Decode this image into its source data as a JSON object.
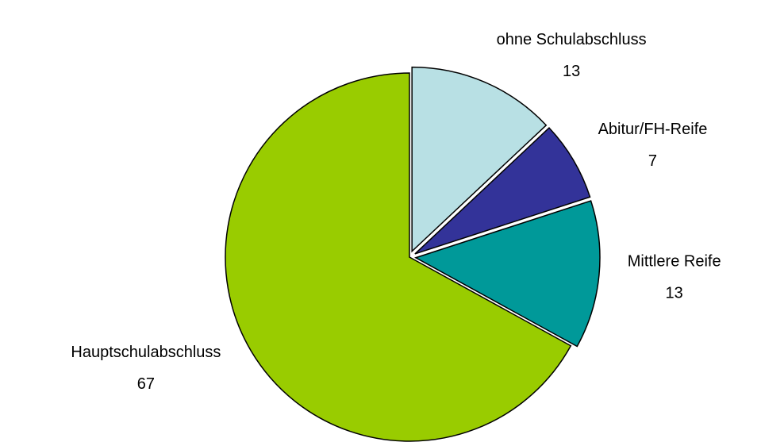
{
  "chart_data": {
    "type": "pie",
    "categories": [
      "ohne Schulabschluss",
      "Abitur/FH-Reife",
      "Mittlere Reife",
      "Hauptschulabschluss"
    ],
    "values": [
      13,
      7,
      13,
      67
    ],
    "colors": [
      "#b8e0e4",
      "#333399",
      "#009999",
      "#99cc00"
    ]
  }
}
